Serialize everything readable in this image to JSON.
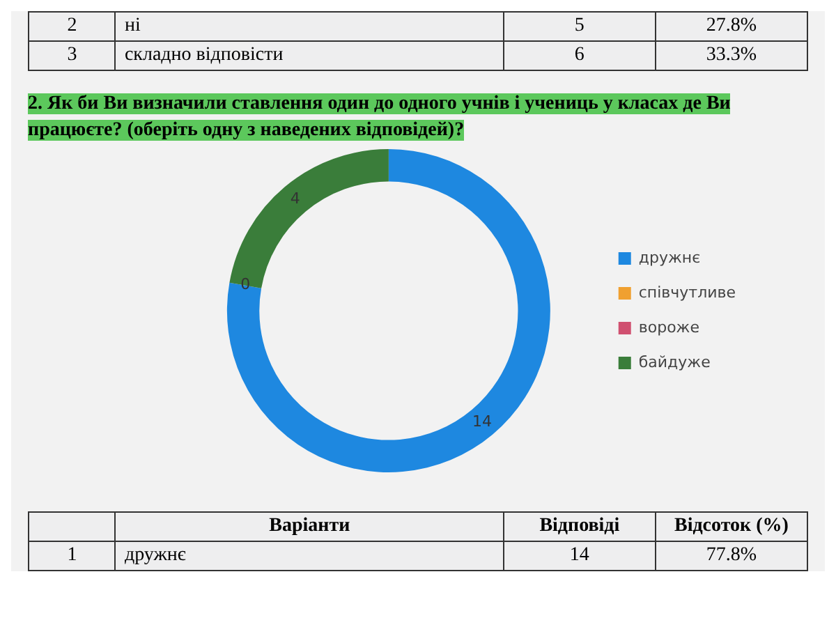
{
  "chart_data": {
    "type": "donut",
    "title": "2. Як би Ви визначили ставлення один до одного учнів і учениць у класах де Ви працюєте? (оберіть одну з наведених відповідей)?",
    "categories": [
      "дружнє",
      "співчутливе",
      "вороже",
      "байдуже"
    ],
    "values": [
      14,
      0,
      0,
      4
    ],
    "colors": [
      "#1e88e0",
      "#f0a030",
      "#d05070",
      "#3a7d3a"
    ],
    "value_labels": [
      "14",
      "0",
      null,
      "4"
    ],
    "legend": "right",
    "annotations": [
      "2",
      "ні",
      "5",
      "27.8%",
      "3",
      "складно відповісти",
      "6",
      "33.3%",
      "Варіанти",
      "Відповіді",
      "Відсоток (%)",
      "1",
      "дружнє",
      "14",
      "77.8%"
    ]
  }
}
